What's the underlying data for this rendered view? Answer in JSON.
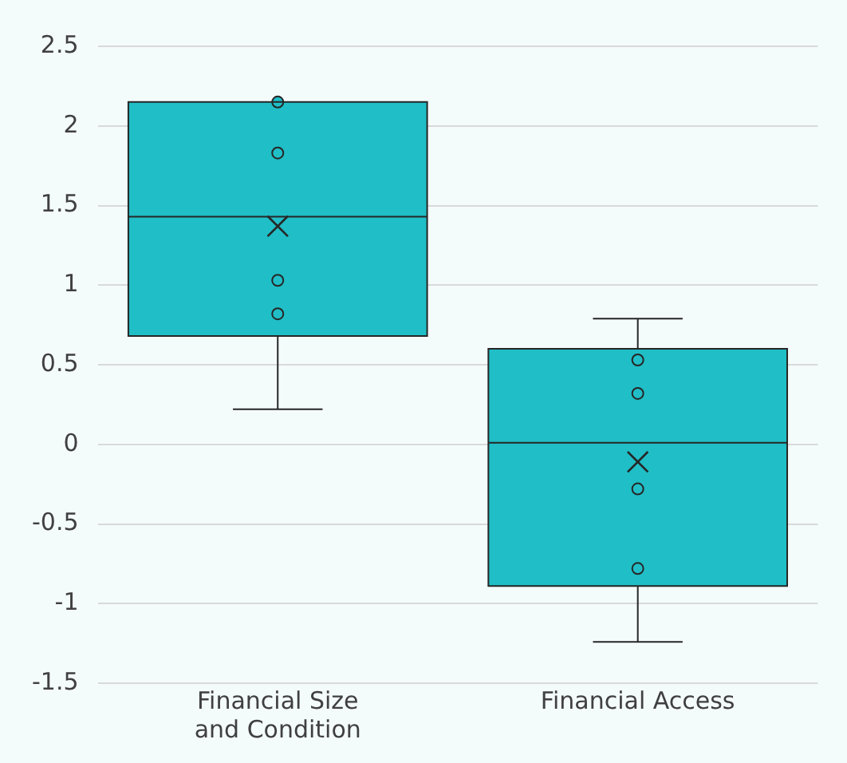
{
  "chart_data": {
    "type": "box",
    "categories": [
      "Financial Size and Condition",
      "Financial Access"
    ],
    "boxes": [
      {
        "low": 0.22,
        "q1": 0.68,
        "median": 1.43,
        "q3": 2.15,
        "high": 2.15,
        "mean": 1.37
      },
      {
        "low": -1.24,
        "q1": -0.89,
        "median": 0.01,
        "q3": 0.6,
        "high": 0.79,
        "mean": -0.11
      }
    ],
    "color": "#20bec6",
    "series": [
      {
        "type": "scatter",
        "color": "#20bec6",
        "x": [
          "Financial Size and Condition",
          "Financial Size and Condition",
          "Financial Size and Condition",
          "Financial Size and Condition",
          "Financial Access",
          "Financial Access",
          "Financial Access",
          "Financial Access"
        ],
        "values": [
          2.15,
          1.83,
          1.03,
          0.82,
          0.53,
          0.32,
          -0.28,
          -0.78
        ]
      }
    ],
    "ylim": [
      -1.5,
      2.5
    ],
    "yticks": [
      -1.5,
      -1,
      -0.5,
      0,
      0.5,
      1,
      1.5,
      2,
      2.5
    ],
    "grid": "y",
    "legend": false,
    "marker": "circle"
  }
}
